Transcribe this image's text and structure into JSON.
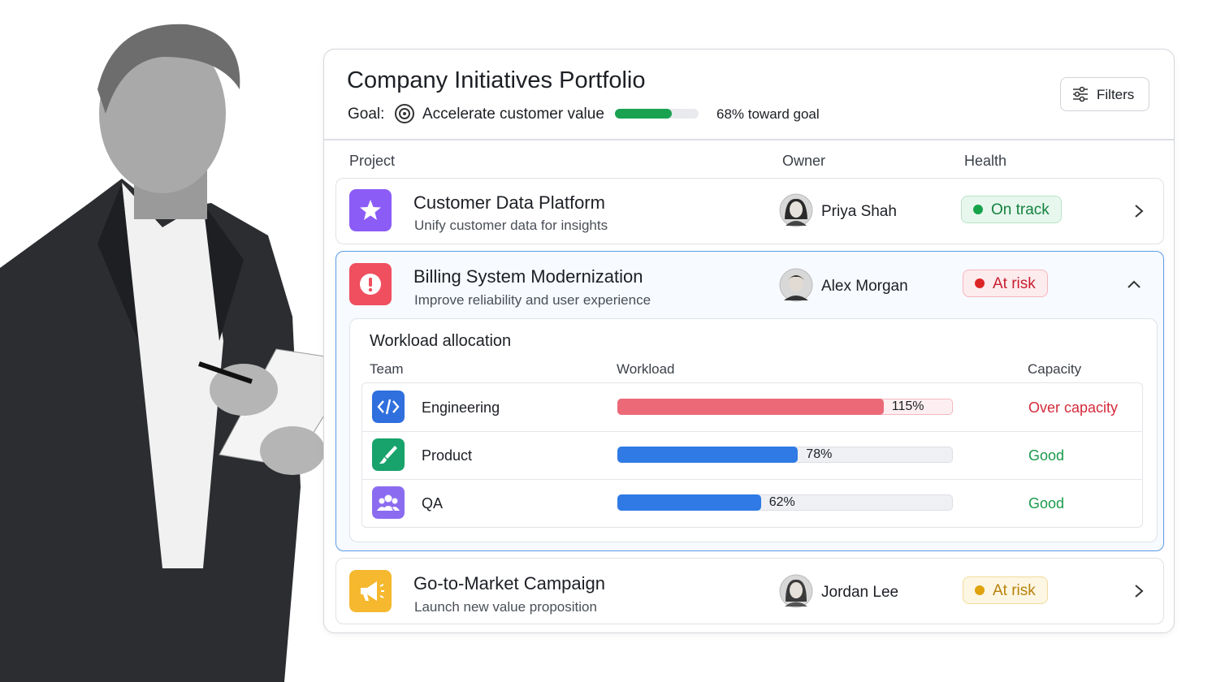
{
  "header": {
    "title": "Company Initiatives Portfolio",
    "goal_label": "Goal:",
    "goal": "Accelerate customer value",
    "progress": {
      "value": 68,
      "label": "68% toward goal"
    },
    "filters": "Filters"
  },
  "columns": [
    "Project",
    "Owner",
    "Health"
  ],
  "projects": [
    {
      "name": "Customer Data Platform",
      "description": "Unify customer data for insights",
      "owner": "Priya Shah",
      "health": "On track"
    },
    {
      "name": "Billing System Modernization",
      "description": "Improve reliability and user experience",
      "owner": "Alex Morgan",
      "health": "At risk"
    },
    {
      "name": "Go-to-Market Campaign",
      "description": "Launch new value proposition",
      "owner": "Jordan Lee",
      "health": "At risk"
    }
  ],
  "workload": {
    "title": "Workload allocation",
    "columns": [
      "Team",
      "Workload",
      "Capacity"
    ],
    "rows": [
      {
        "team": "Engineering",
        "workload": {
          "value": 115,
          "label": "115%"
        },
        "capacity": "Over capacity"
      },
      {
        "team": "Product",
        "workload": {
          "value": 78,
          "label": "78%"
        },
        "capacity": "Good"
      },
      {
        "team": "QA",
        "workload": {
          "value": 62,
          "label": "62%"
        },
        "capacity": "Good"
      }
    ]
  }
}
